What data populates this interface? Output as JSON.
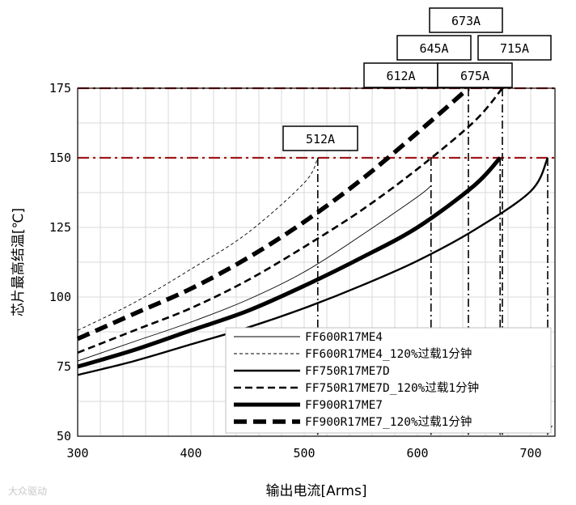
{
  "chart_data": {
    "type": "line",
    "xlabel": "输出电流[Arms]",
    "ylabel": "芯片最高结温[℃]",
    "xlim": [
      300,
      715
    ],
    "ylim": [
      50,
      175
    ],
    "xticks": [
      300,
      400,
      500,
      600,
      700
    ],
    "yticks": [
      50,
      75,
      100,
      125,
      150,
      175
    ],
    "grid": true,
    "legend_position": "bottom-right",
    "limit_lines": [
      150,
      175
    ],
    "series": [
      {
        "name": "FF600R17ME4",
        "style": "thin-solid",
        "x": [
          300,
          350,
          400,
          450,
          500,
          550,
          600,
          612
        ],
        "y": [
          77,
          84,
          91,
          99,
          109,
          122,
          136,
          140
        ]
      },
      {
        "name": "FF600R17ME4_120%过载1分钟",
        "style": "thin-dashed",
        "x": [
          300,
          350,
          400,
          450,
          500,
          512
        ],
        "y": [
          88,
          98,
          110,
          123,
          141,
          150
        ]
      },
      {
        "name": "FF750R17ME7D",
        "style": "medium-solid",
        "x": [
          300,
          350,
          400,
          450,
          500,
          550,
          600,
          650,
          700,
          715
        ],
        "y": [
          72,
          77,
          83,
          89,
          96,
          104,
          113,
          124,
          138,
          150
        ]
      },
      {
        "name": "FF750R17ME7D_120%过载1分钟",
        "style": "medium-dashed",
        "x": [
          300,
          350,
          400,
          450,
          500,
          550,
          600,
          650,
          675
        ],
        "y": [
          80,
          88,
          96,
          106,
          118,
          131,
          146,
          163,
          175
        ]
      },
      {
        "name": "FF900R17ME7",
        "style": "thick-solid",
        "x": [
          300,
          350,
          400,
          450,
          500,
          550,
          600,
          650,
          673
        ],
        "y": [
          75,
          81,
          88,
          95,
          104,
          114,
          125,
          140,
          150
        ]
      },
      {
        "name": "FF900R17ME7_120%过载1分钟",
        "style": "thick-dashed",
        "x": [
          300,
          350,
          400,
          450,
          500,
          550,
          600,
          645
        ],
        "y": [
          85,
          94,
          103,
          114,
          127,
          142,
          159,
          175
        ]
      }
    ],
    "annotations": [
      {
        "label": "512A",
        "x": 512
      },
      {
        "label": "612A",
        "x": 612
      },
      {
        "label": "645A",
        "x": 645
      },
      {
        "label": "673A",
        "x": 673
      },
      {
        "label": "675A",
        "x": 675
      },
      {
        "label": "715A",
        "x": 715
      }
    ]
  },
  "watermark": "大众驱动"
}
